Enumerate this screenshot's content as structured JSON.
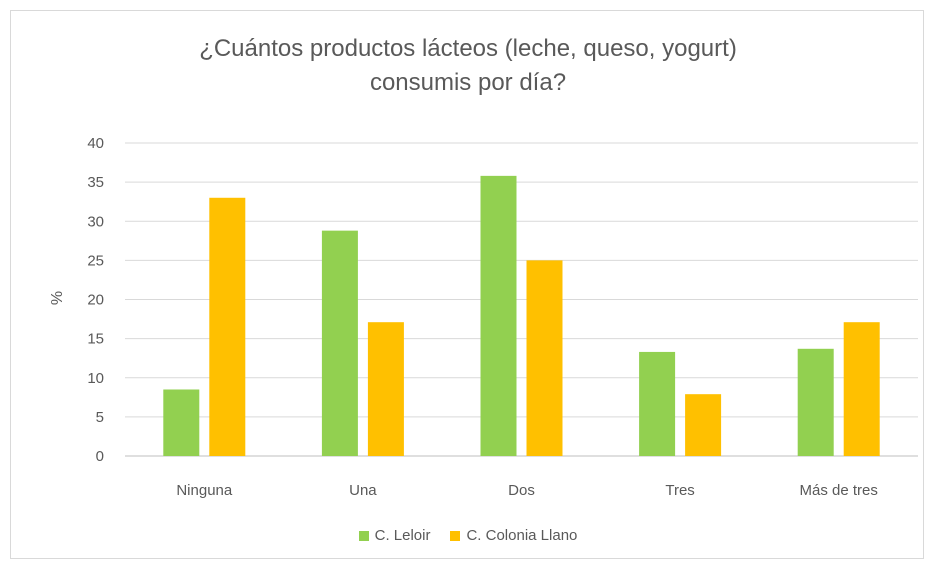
{
  "chart_data": {
    "type": "bar",
    "title_lines": [
      "¿Cuántos productos lácteos (leche, queso, yogurt)",
      "consumis por día?"
    ],
    "ylabel": "%",
    "xlabel": "",
    "ylim": [
      0,
      40
    ],
    "yticks": [
      0,
      5,
      10,
      15,
      20,
      25,
      30,
      35,
      40
    ],
    "grid": true,
    "legend_position": "bottom",
    "categories": [
      "Ninguna",
      "Una",
      "Dos",
      "Tres",
      "Más de tres"
    ],
    "series": [
      {
        "name": "C. Leloir",
        "color": "#92d050",
        "values": [
          8.5,
          28.8,
          35.8,
          13.3,
          13.7
        ]
      },
      {
        "name": "C. Colonia Llano",
        "color": "#ffc000",
        "values": [
          33,
          17.1,
          25,
          7.9,
          17.1
        ]
      }
    ]
  }
}
